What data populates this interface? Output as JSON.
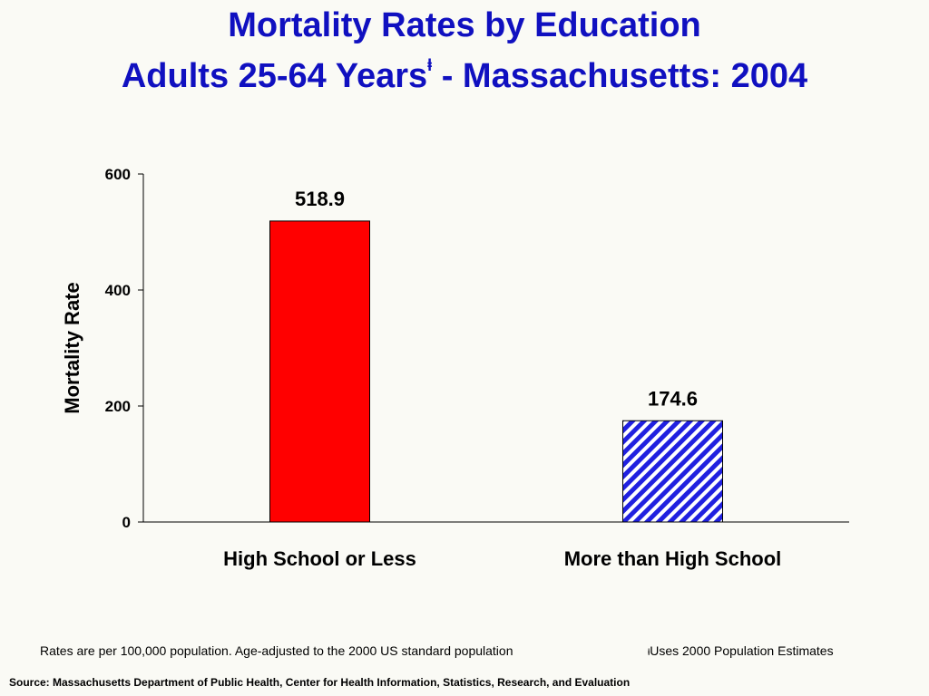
{
  "title": {
    "line1": "Mortality Rates by Education",
    "line2_main": "Adults 25-64 Years",
    "line2_mark": "ⱡ",
    "line2_rest": " - Massachusetts: 2004"
  },
  "chart_data": {
    "type": "bar",
    "categories": [
      "High School or Less",
      "More than High School"
    ],
    "values": [
      518.9,
      174.6
    ],
    "value_labels": [
      "518.9",
      "174.6"
    ],
    "ylabel": "Mortality Rate",
    "ylim": [
      0,
      600
    ],
    "yticks": [
      0,
      200,
      400,
      600
    ],
    "grid": false,
    "bar_colors": [
      "#ff0000",
      "#2020e0"
    ],
    "bar_patterns": [
      "solid",
      "diagonal-hatch"
    ]
  },
  "footnotes": {
    "rates_note": "Rates are per 100,000 population.  Age-adjusted to the 2000 US standard population",
    "dagger_mark": "ⱡ",
    "dagger_note": "Uses 2000 Population Estimates"
  },
  "source": "Source:  Massachusetts Department of Public Health, Center for Health Information, Statistics, Research, and Evaluation"
}
